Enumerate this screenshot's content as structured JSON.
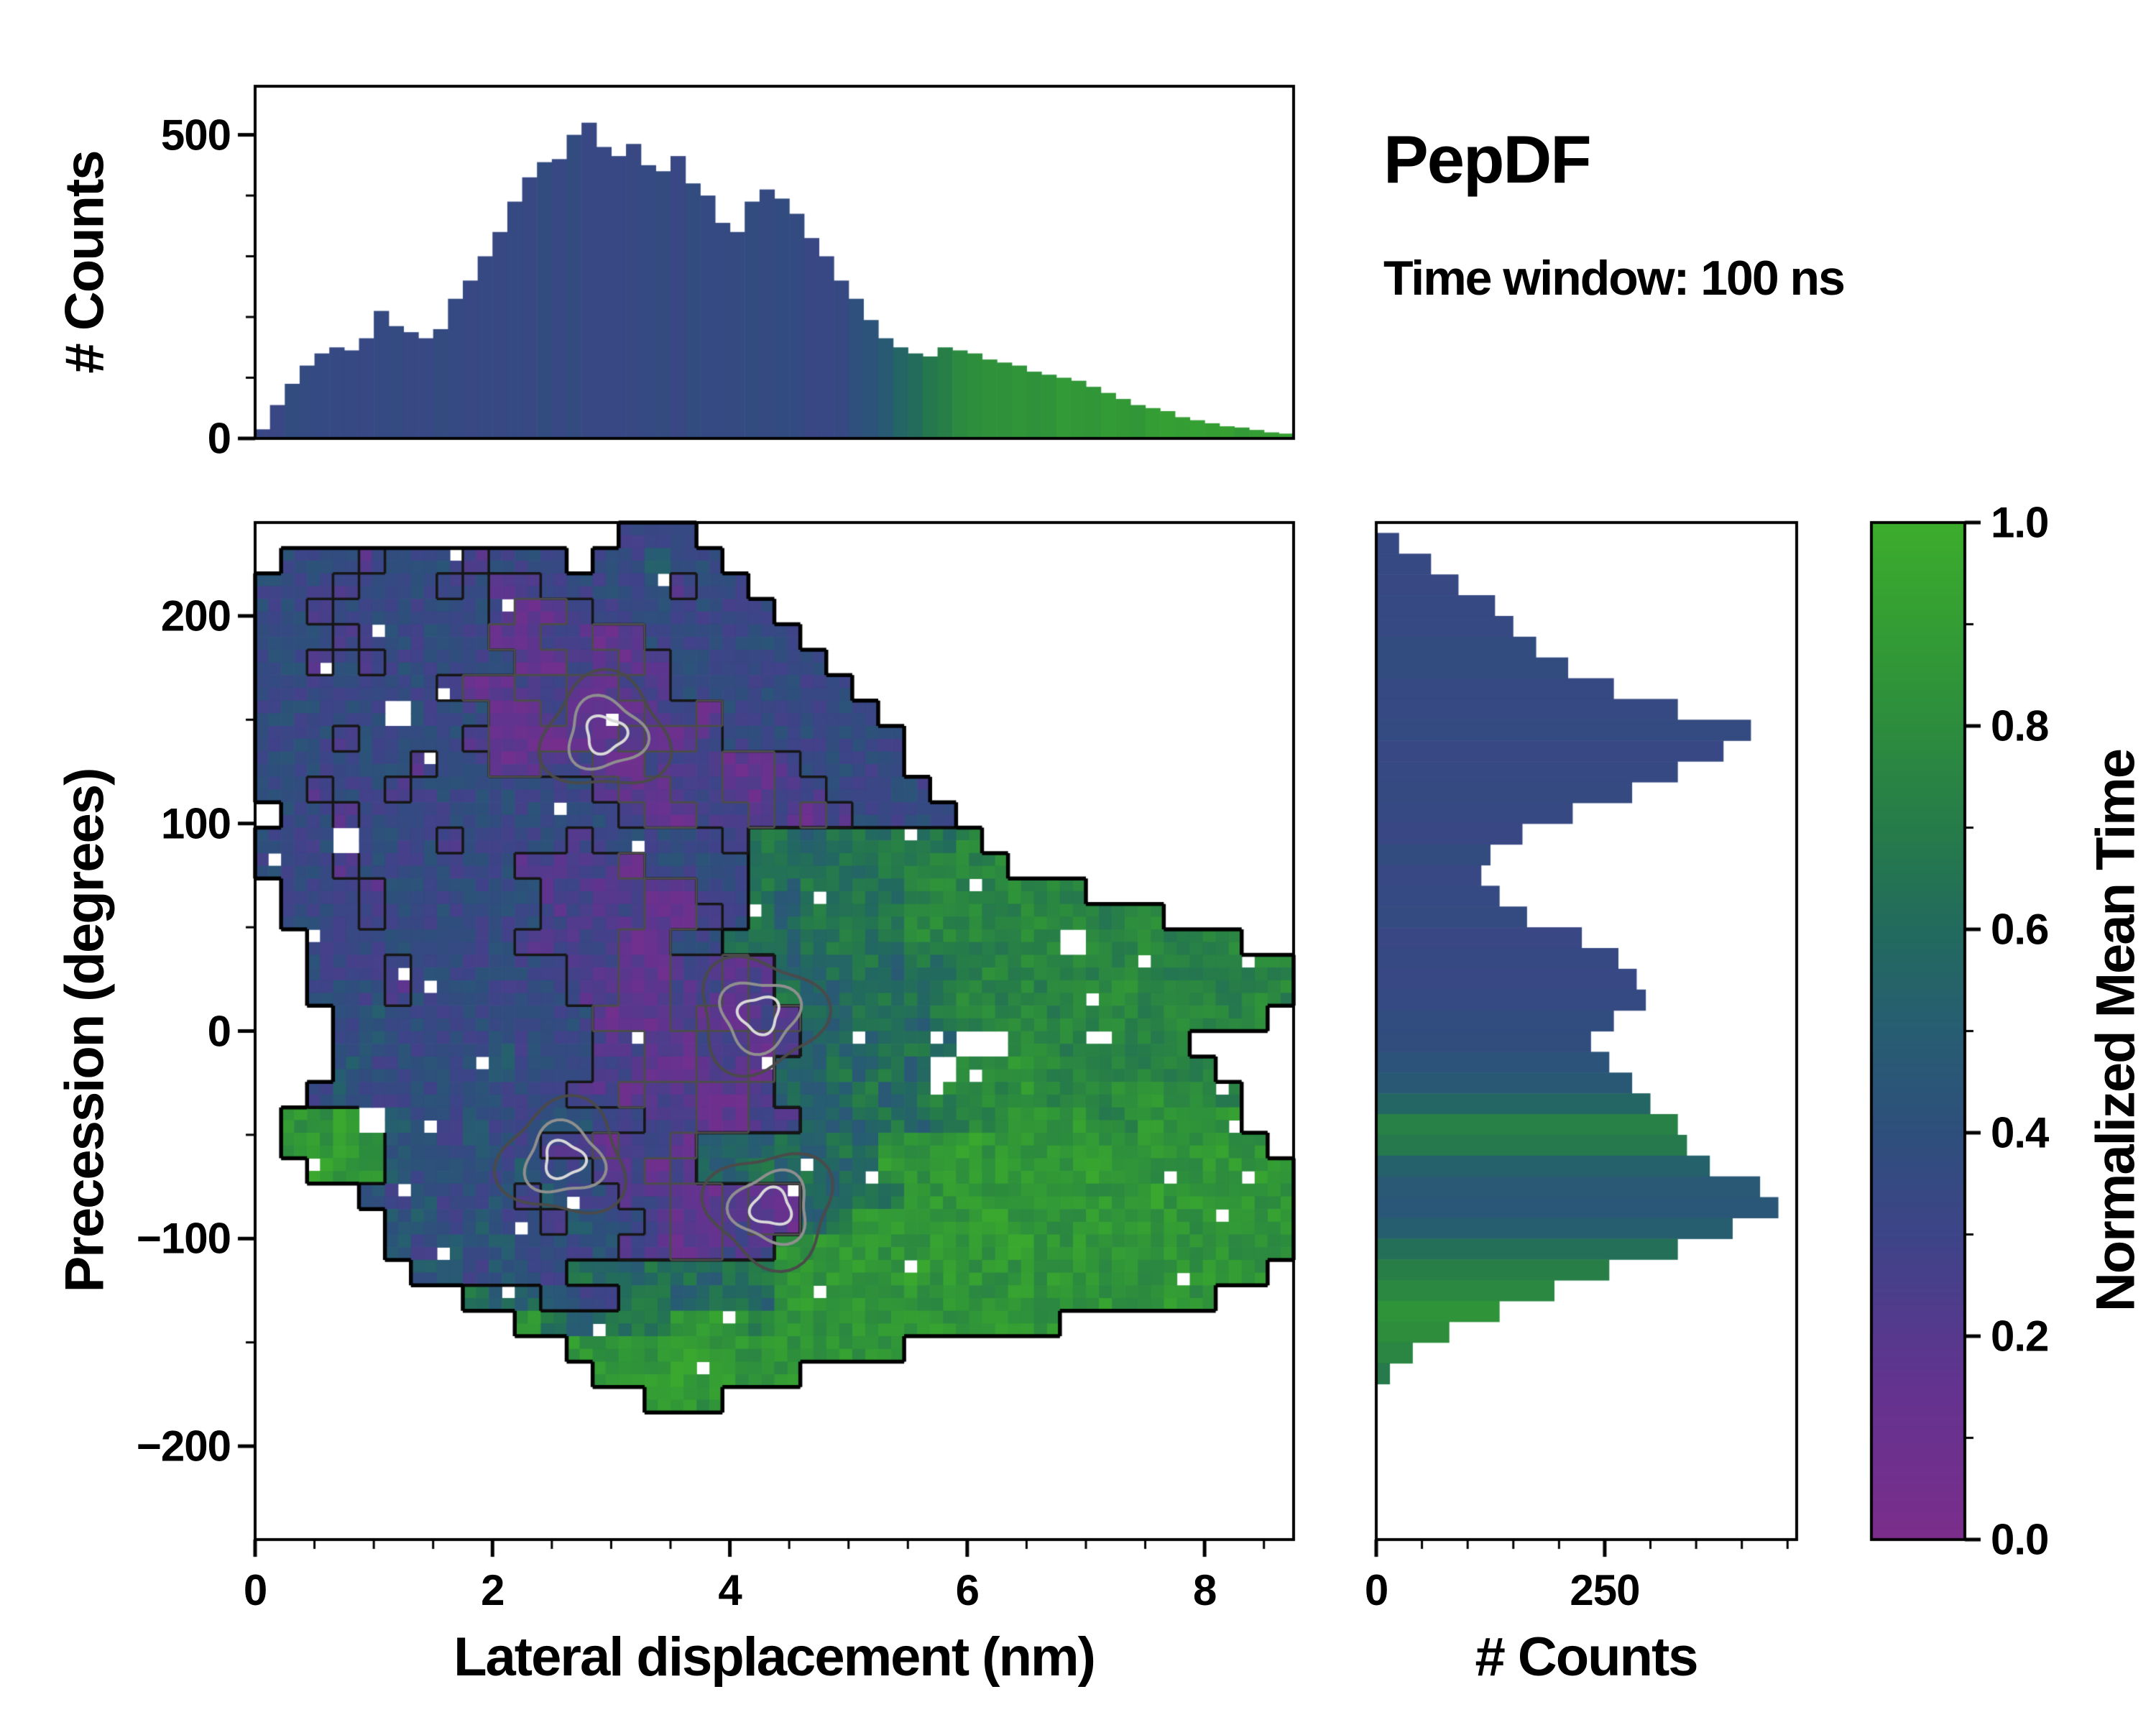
{
  "title": "PepDF",
  "subtitle": "Time window: 100 ns",
  "chart_data": [
    {
      "type": "bar",
      "panel": "top-histogram",
      "ylabel": "# Counts",
      "xlim": [
        0,
        8.75
      ],
      "ylim": [
        0,
        580
      ],
      "yticks": [
        0,
        500
      ],
      "ytick_labels": [
        "0",
        "500"
      ],
      "bin_width": 0.125,
      "counts": [
        15,
        55,
        90,
        120,
        140,
        150,
        145,
        165,
        210,
        185,
        175,
        165,
        180,
        230,
        260,
        300,
        340,
        390,
        430,
        455,
        460,
        500,
        520,
        480,
        465,
        485,
        450,
        440,
        465,
        420,
        400,
        355,
        340,
        390,
        410,
        395,
        370,
        330,
        300,
        260,
        230,
        195,
        165,
        150,
        140,
        135,
        150,
        145,
        140,
        130,
        125,
        120,
        110,
        105,
        100,
        95,
        85,
        75,
        65,
        55,
        50,
        45,
        35,
        30,
        25,
        20,
        18,
        14,
        10,
        8
      ],
      "mean_time": [
        0.35,
        0.35,
        0.35,
        0.35,
        0.35,
        0.35,
        0.35,
        0.35,
        0.35,
        0.35,
        0.35,
        0.35,
        0.35,
        0.35,
        0.35,
        0.35,
        0.35,
        0.35,
        0.35,
        0.35,
        0.35,
        0.35,
        0.35,
        0.35,
        0.35,
        0.35,
        0.35,
        0.35,
        0.35,
        0.35,
        0.35,
        0.35,
        0.35,
        0.35,
        0.35,
        0.35,
        0.35,
        0.35,
        0.35,
        0.35,
        0.4,
        0.45,
        0.5,
        0.55,
        0.62,
        0.68,
        0.72,
        0.76,
        0.8,
        0.82,
        0.84,
        0.85,
        0.85,
        0.86,
        0.86,
        0.87,
        0.87,
        0.88,
        0.88,
        0.88,
        0.89,
        0.89,
        0.9,
        0.9,
        0.9,
        0.9,
        0.9,
        0.9,
        0.9,
        0.9
      ]
    },
    {
      "type": "heatmap",
      "panel": "joint-distribution",
      "xlabel": "Lateral displacement (nm)",
      "ylabel": "Precession (degrees)",
      "xlim": [
        0,
        8.75
      ],
      "ylim": [
        -245,
        245
      ],
      "xticks": [
        0,
        2,
        4,
        6,
        8
      ],
      "xtick_labels": [
        "0",
        "2",
        "4",
        "6",
        "8"
      ],
      "yticks": [
        -200,
        -100,
        0,
        100,
        200
      ],
      "ytick_labels": [
        "−200",
        "−100",
        "0",
        "100",
        "200"
      ],
      "value_label": "Normalized Mean Time",
      "grid_cols": 40,
      "grid_note": "digit d = normalized mean time (d+0.5)/10, '.' = no data; rows run +240deg (top) to -240deg, cols 0 to 8.75 nm",
      "grid": [
        "..............333",
        ".33323332333.33433",
        "3332333232233333233",
        "33233333321123333333",
        "333233333112211333333",
        "3323233333112212333333",
        "33333332112211223333333",
        "33333.333112111221333333",
        "3332333321101121123333333",
        "3333332331122112221123333",
        "33233233333332112211223333",
        ".33233333333332112212123333",
        "333.333233332333332665666667",
        "33323333332222133336656667777",
        ".3332333333222211336566667777777",
        ".3332333333222211236566667777777777",
        "..33333333222211336656666777777.777777",
        "..33323333332211221255665667777777777777",
        "..33323333332211221265566667777778777777",
        "...343333333311121121556656777777777777",
        "...343333433322112212555665..7777777",
        "...43333343332211221556565.7787777777",
        "..343333433322122112555656777877788777",
        ".889.433433443322112255565677888778888",
        ".88984334332212215556565888988888888888",
        "..98843433433221255656568898888898888888",
        "....434334243322112115566888888888988888",
        ".....44343324332112115688888988888888888",
        ".....43434333422112288888888898888888888",
        "......443433655665668888898888888888888",
        "........65543366566588888888888888888",
        "..........865666888788888888888",
        "............8888988888888",
        ".............88898888",
        "...............888",
        "",
        "",
        "",
        "",
        ""
      ],
      "contour_peaks": [
        {
          "x": 2.95,
          "y": 143
        },
        {
          "x": 4.25,
          "y": 8
        },
        {
          "x": 4.35,
          "y": -85
        },
        {
          "x": 2.6,
          "y": -62
        }
      ]
    },
    {
      "type": "bar",
      "panel": "right-histogram",
      "xlabel": "# Counts",
      "xlim": [
        0,
        460
      ],
      "xticks": [
        0,
        250
      ],
      "xtick_labels": [
        "0",
        "250"
      ],
      "ylim": [
        -245,
        245
      ],
      "bin_width": 10,
      "y_first_center": 235,
      "counts": [
        25,
        60,
        90,
        130,
        150,
        175,
        210,
        260,
        330,
        410,
        380,
        330,
        280,
        215,
        160,
        125,
        115,
        135,
        165,
        225,
        265,
        285,
        295,
        260,
        235,
        255,
        280,
        300,
        330,
        340,
        365,
        420,
        440,
        390,
        330,
        255,
        195,
        135,
        80,
        40,
        15,
        0,
        0,
        0,
        0,
        0,
        0,
        0
      ],
      "mean_time": [
        0.35,
        0.35,
        0.35,
        0.35,
        0.35,
        0.35,
        0.35,
        0.35,
        0.35,
        0.35,
        0.35,
        0.35,
        0.35,
        0.35,
        0.35,
        0.35,
        0.35,
        0.35,
        0.35,
        0.35,
        0.35,
        0.35,
        0.35,
        0.38,
        0.4,
        0.42,
        0.45,
        0.55,
        0.72,
        0.68,
        0.55,
        0.48,
        0.46,
        0.52,
        0.62,
        0.72,
        0.78,
        0.82,
        0.8,
        0.75,
        0.7,
        0.5,
        0.5,
        0.5,
        0.5,
        0.5,
        0.5,
        0.5
      ]
    },
    {
      "type": "colorbar",
      "label": "Normalized Mean Time",
      "range": [
        0,
        1
      ],
      "ticks": [
        0,
        0.2,
        0.4,
        0.6,
        0.8,
        1
      ],
      "tick_labels": [
        "0.0",
        "0.2",
        "0.4",
        "0.6",
        "0.8",
        "1.0"
      ],
      "stops": [
        [
          0.0,
          "#7b2d8b"
        ],
        [
          0.15,
          "#63338f"
        ],
        [
          0.3,
          "#3d4488"
        ],
        [
          0.4,
          "#2e4f7c"
        ],
        [
          0.5,
          "#275d72"
        ],
        [
          0.6,
          "#226a5e"
        ],
        [
          0.7,
          "#267c49"
        ],
        [
          0.85,
          "#309538"
        ],
        [
          1.0,
          "#3cad2c"
        ]
      ]
    }
  ]
}
